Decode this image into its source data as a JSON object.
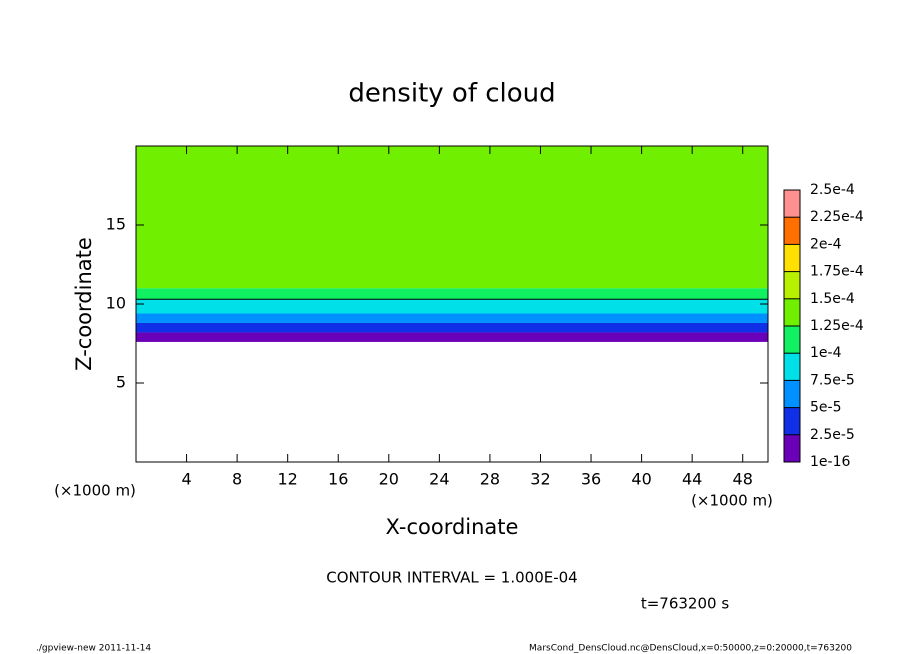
{
  "chart_data": {
    "type": "contour",
    "title": "density of cloud",
    "xlabel": "X-coordinate",
    "ylabel": "Z-coordinate",
    "xunit": "(×1000 m)",
    "yunit": "(×1000 m)",
    "xlim": [
      0,
      50
    ],
    "ylim": [
      0,
      20
    ],
    "xticks": [
      4,
      8,
      12,
      16,
      20,
      24,
      28,
      32,
      36,
      40,
      44,
      48
    ],
    "yticks": [
      5,
      10,
      15
    ],
    "profile": {
      "z_edges": [
        7.6,
        8.2,
        8.8,
        9.4,
        10.3,
        11,
        20
      ],
      "values": [
        1e-05,
        3.5e-05,
        6e-05,
        8.5e-05,
        0.00012,
        0.00014
      ]
    },
    "contour_level": 0.0001,
    "contour_note": "CONTOUR INTERVAL = 1.000E-04",
    "time_label": "t=763200 s",
    "colorbar": {
      "ticks": [
        {
          "value": 1e-16,
          "label": "1e-16"
        },
        {
          "value": 2.5e-05,
          "label": "2.5e-5"
        },
        {
          "value": 5e-05,
          "label": "5e-5"
        },
        {
          "value": 7.5e-05,
          "label": "7.5e-5"
        },
        {
          "value": 0.0001,
          "label": "1e-4"
        },
        {
          "value": 0.000125,
          "label": "1.25e-4"
        },
        {
          "value": 0.00015,
          "label": "1.5e-4"
        },
        {
          "value": 0.000175,
          "label": "1.75e-4"
        },
        {
          "value": 0.0002,
          "label": "2e-4"
        },
        {
          "value": 0.000225,
          "label": "2.25e-4"
        },
        {
          "value": 0.00025,
          "label": "2.5e-4"
        }
      ],
      "colors": [
        "#6a00b8",
        "#1030e8",
        "#0090ff",
        "#00e0e8",
        "#10f060",
        "#70f000",
        "#b8f000",
        "#ffe000",
        "#ff7000",
        "#ff9090"
      ]
    },
    "footer_left": "./gpview-new  2011-11-14",
    "footer_right": "MarsCond_DensCloud.nc@DensCloud,x=0:50000,z=0:20000,t=763200"
  }
}
